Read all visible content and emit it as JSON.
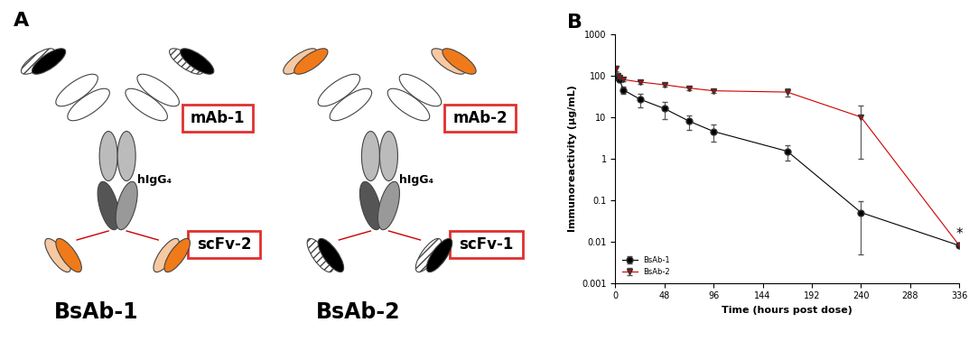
{
  "diagram": {
    "label": "A",
    "constructs": [
      {
        "name": "BsAb-1",
        "mab": "mAb-1",
        "fc": "hIgG₄",
        "scfv": "scFv-2"
      },
      {
        "name": "BsAb-2",
        "mab": "mAb-2",
        "fc": "hIgG₄",
        "scfv": "scFv-1"
      }
    ]
  },
  "chart_data": {
    "type": "line",
    "panel_label": "B",
    "x_label": "Time (hours post dose)",
    "y_label": "Immunoreactivity (µg/mL)",
    "log": "y",
    "xlim": [
      0,
      336
    ],
    "xticks": [
      0,
      48,
      96,
      144,
      192,
      240,
      288,
      336
    ],
    "ylim": [
      0.001,
      1000
    ],
    "yticks": [
      0.001,
      0.01,
      0.1,
      1,
      10,
      100,
      1000
    ],
    "legend": "lower left",
    "series": [
      {
        "name": "BsAb-1",
        "color": "#000000",
        "marker": "circle",
        "x": [
          0.5,
          2,
          4,
          8,
          24,
          48,
          72,
          96,
          168,
          240,
          336
        ],
        "values": [
          100,
          90,
          80,
          45,
          27,
          16,
          8,
          4.5,
          1.5,
          0.05,
          0.008
        ],
        "errors": [
          10,
          10,
          10,
          8,
          10,
          7,
          3,
          2,
          0.6,
          0.045,
          0
        ]
      },
      {
        "name": "BsAb-2",
        "color": "#cc0000",
        "marker": "triangle_down",
        "x": [
          0.5,
          2,
          4,
          8,
          24,
          48,
          72,
          96,
          168,
          240,
          336
        ],
        "values": [
          150,
          100,
          90,
          80,
          70,
          60,
          50,
          43,
          40,
          10,
          0.008
        ],
        "errors": [
          20,
          15,
          10,
          8,
          8,
          6,
          5,
          4,
          8,
          9,
          0
        ]
      }
    ],
    "annotations": [
      {
        "text": "*",
        "x": 336,
        "y": 0.008
      }
    ]
  }
}
